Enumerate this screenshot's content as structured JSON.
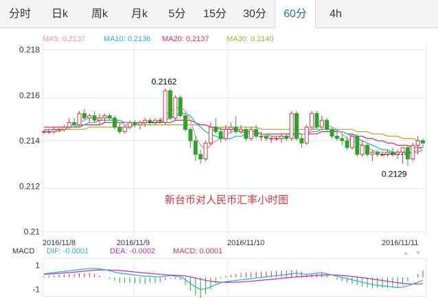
{
  "tabs": [
    {
      "label": "分时"
    },
    {
      "label": "日k"
    },
    {
      "label": "周k"
    },
    {
      "label": "月k"
    },
    {
      "label": "5分"
    },
    {
      "label": "15分"
    },
    {
      "label": "30分"
    },
    {
      "label": "60分",
      "active": true
    },
    {
      "label": "4h"
    }
  ],
  "legend": [
    {
      "label": "MA5: 0.2137",
      "color": "#f08cb4"
    },
    {
      "label": "MA10: 0.2136",
      "color": "#2cb5c8"
    },
    {
      "label": "MA20: 0.2137",
      "color": "#d6306f"
    },
    {
      "label": "MA30: 0.2140",
      "color": "#9db53a"
    }
  ],
  "macd_legend": {
    "title": "MACD",
    "dif": {
      "label": "DIF: -0.0001",
      "color": "#2cb5c8"
    },
    "dea": {
      "label": "DEA: -0.0002",
      "color": "#c02ec8"
    },
    "macd": {
      "label": "MACD: 0.0001",
      "color": "#d6306f"
    }
  },
  "chart_data": {
    "type": "candlestick",
    "title": "新台币对人民币汇率小时图",
    "ylim": [
      0.21,
      0.218
    ],
    "y_ticks": [
      "0.218",
      "0.216",
      "0.214",
      "0.212",
      "0.21"
    ],
    "date_labels": [
      "2016/11/8",
      "2016/11/9",
      "2016/11/10",
      "2016/11/11"
    ],
    "annotations": [
      {
        "label": "0.2162"
      },
      {
        "label": "0.2129"
      }
    ],
    "up_color": "#d8343c",
    "down_color": "#2aa52a",
    "candles": [
      [
        0.2144,
        0.2145,
        0.2143,
        0.2144
      ],
      [
        0.2144,
        0.2145,
        0.2143,
        0.2144
      ],
      [
        0.2144,
        0.2146,
        0.2143,
        0.2145
      ],
      [
        0.2145,
        0.2146,
        0.2144,
        0.2145
      ],
      [
        0.2145,
        0.2147,
        0.2144,
        0.2146
      ],
      [
        0.2146,
        0.215,
        0.2145,
        0.2148
      ],
      [
        0.2148,
        0.215,
        0.2146,
        0.2147
      ],
      [
        0.2147,
        0.2153,
        0.2146,
        0.2152
      ],
      [
        0.2152,
        0.2154,
        0.2149,
        0.215
      ],
      [
        0.215,
        0.2152,
        0.2148,
        0.2151
      ],
      [
        0.2151,
        0.2153,
        0.2148,
        0.2149
      ],
      [
        0.2149,
        0.2152,
        0.2147,
        0.215
      ],
      [
        0.215,
        0.2152,
        0.2148,
        0.2151
      ],
      [
        0.2151,
        0.2152,
        0.2149,
        0.215
      ],
      [
        0.215,
        0.2151,
        0.2145,
        0.2146
      ],
      [
        0.2146,
        0.2148,
        0.2143,
        0.2144
      ],
      [
        0.2144,
        0.2147,
        0.2143,
        0.2146
      ],
      [
        0.2146,
        0.2149,
        0.2145,
        0.2148
      ],
      [
        0.2148,
        0.2149,
        0.2146,
        0.2147
      ],
      [
        0.2147,
        0.2149,
        0.2145,
        0.2148
      ],
      [
        0.2148,
        0.215,
        0.2146,
        0.2149
      ],
      [
        0.2149,
        0.215,
        0.2147,
        0.2148
      ],
      [
        0.2148,
        0.215,
        0.2147,
        0.2149
      ],
      [
        0.2149,
        0.215,
        0.2148,
        0.2149
      ],
      [
        0.2148,
        0.2163,
        0.2147,
        0.2162
      ],
      [
        0.2162,
        0.2163,
        0.2149,
        0.215
      ],
      [
        0.215,
        0.216,
        0.2149,
        0.2159
      ],
      [
        0.2159,
        0.216,
        0.215,
        0.2151
      ],
      [
        0.2151,
        0.2152,
        0.2144,
        0.2145
      ],
      [
        0.2145,
        0.2146,
        0.2137,
        0.214
      ],
      [
        0.214,
        0.2142,
        0.2131,
        0.2134
      ],
      [
        0.2134,
        0.2136,
        0.213,
        0.2132
      ],
      [
        0.2132,
        0.214,
        0.2131,
        0.2139
      ],
      [
        0.2139,
        0.2148,
        0.2138,
        0.2146
      ],
      [
        0.2146,
        0.215,
        0.2143,
        0.2144
      ],
      [
        0.2144,
        0.2146,
        0.2139,
        0.2141
      ],
      [
        0.2141,
        0.2147,
        0.214,
        0.2145
      ],
      [
        0.2145,
        0.2148,
        0.2143,
        0.2146
      ],
      [
        0.2146,
        0.2151,
        0.2143,
        0.2144
      ],
      [
        0.2144,
        0.2147,
        0.2143,
        0.2145
      ],
      [
        0.2145,
        0.2146,
        0.214,
        0.2141
      ],
      [
        0.2141,
        0.2146,
        0.214,
        0.2145
      ],
      [
        0.2145,
        0.2147,
        0.2141,
        0.2142
      ],
      [
        0.2142,
        0.2144,
        0.214,
        0.2142
      ],
      [
        0.2142,
        0.2143,
        0.214,
        0.2141
      ],
      [
        0.2141,
        0.2142,
        0.2139,
        0.2141
      ],
      [
        0.2141,
        0.2142,
        0.214,
        0.2141
      ],
      [
        0.2141,
        0.2143,
        0.2139,
        0.2142
      ],
      [
        0.2142,
        0.2143,
        0.214,
        0.2141
      ],
      [
        0.2141,
        0.2153,
        0.214,
        0.2152
      ],
      [
        0.2152,
        0.2153,
        0.214,
        0.2141
      ],
      [
        0.2141,
        0.2143,
        0.2137,
        0.2139
      ],
      [
        0.2139,
        0.2147,
        0.2138,
        0.2146
      ],
      [
        0.2146,
        0.2153,
        0.2145,
        0.2152
      ],
      [
        0.2152,
        0.2153,
        0.2145,
        0.2146
      ],
      [
        0.2146,
        0.2151,
        0.2145,
        0.2149
      ],
      [
        0.2149,
        0.215,
        0.2144,
        0.2145
      ],
      [
        0.2145,
        0.2146,
        0.2141,
        0.2142
      ],
      [
        0.2142,
        0.2145,
        0.214,
        0.2141
      ],
      [
        0.2141,
        0.2143,
        0.2138,
        0.214
      ],
      [
        0.214,
        0.2142,
        0.2136,
        0.2137
      ],
      [
        0.2137,
        0.2143,
        0.2136,
        0.2142
      ],
      [
        0.2142,
        0.2143,
        0.2133,
        0.2134
      ],
      [
        0.2134,
        0.214,
        0.2133,
        0.2138
      ],
      [
        0.2138,
        0.2139,
        0.2133,
        0.2134
      ],
      [
        0.2134,
        0.2136,
        0.2131,
        0.2135
      ],
      [
        0.2135,
        0.2136,
        0.2133,
        0.2134
      ],
      [
        0.2134,
        0.2135,
        0.2133,
        0.2134
      ],
      [
        0.2134,
        0.2136,
        0.2133,
        0.2135
      ],
      [
        0.2135,
        0.2137,
        0.2133,
        0.2134
      ],
      [
        0.2134,
        0.2136,
        0.2132,
        0.2135
      ],
      [
        0.2135,
        0.2137,
        0.213,
        0.2137
      ],
      [
        0.2137,
        0.2138,
        0.2129,
        0.2132
      ],
      [
        0.2132,
        0.2139,
        0.2131,
        0.2138
      ],
      [
        0.2138,
        0.2142,
        0.2134,
        0.214
      ],
      [
        0.214,
        0.2141,
        0.2137,
        0.2139
      ]
    ],
    "ma": {
      "MA5": [
        0.2145,
        0.2144,
        0.2144,
        0.2145,
        0.2145,
        0.2146,
        0.2147,
        0.2148,
        0.2149,
        0.215,
        0.215,
        0.215,
        0.215,
        0.215,
        0.2149,
        0.2148,
        0.2147,
        0.2147,
        0.2147,
        0.2147,
        0.2148,
        0.2148,
        0.2148,
        0.2149,
        0.2151,
        0.2153,
        0.2154,
        0.2155,
        0.2153,
        0.2149,
        0.2142,
        0.2138,
        0.2136,
        0.2138,
        0.214,
        0.2141,
        0.2142,
        0.2144,
        0.2144,
        0.2144,
        0.2143,
        0.2143,
        0.2143,
        0.2143,
        0.2142,
        0.2142,
        0.2141,
        0.2141,
        0.2141,
        0.2143,
        0.2144,
        0.2143,
        0.2143,
        0.2145,
        0.2146,
        0.2147,
        0.2147,
        0.2146,
        0.2145,
        0.2143,
        0.2141,
        0.214,
        0.2139,
        0.2138,
        0.2137,
        0.2136,
        0.2135,
        0.2135,
        0.2135,
        0.2134,
        0.2135,
        0.2135,
        0.2134,
        0.2135,
        0.2136,
        0.2137
      ],
      "MA10": [
        0.2145,
        0.2145,
        0.2145,
        0.2145,
        0.2145,
        0.2146,
        0.2146,
        0.2147,
        0.2147,
        0.2148,
        0.2148,
        0.2149,
        0.2149,
        0.2149,
        0.2149,
        0.2149,
        0.2148,
        0.2148,
        0.2148,
        0.2148,
        0.2148,
        0.2148,
        0.2148,
        0.2148,
        0.2149,
        0.215,
        0.2151,
        0.2152,
        0.2152,
        0.2151,
        0.2148,
        0.2146,
        0.2144,
        0.2143,
        0.2142,
        0.2141,
        0.2141,
        0.2141,
        0.2142,
        0.2142,
        0.2143,
        0.2143,
        0.2143,
        0.2143,
        0.2143,
        0.2142,
        0.2142,
        0.2142,
        0.2142,
        0.2142,
        0.2143,
        0.2143,
        0.2143,
        0.2144,
        0.2144,
        0.2145,
        0.2145,
        0.2145,
        0.2144,
        0.2144,
        0.2143,
        0.2142,
        0.2141,
        0.214,
        0.2139,
        0.2138,
        0.2137,
        0.2136,
        0.2136,
        0.2135,
        0.2135,
        0.2135,
        0.2135,
        0.2135,
        0.2135,
        0.2136
      ],
      "MA20": [
        0.2146,
        0.2146,
        0.2146,
        0.2146,
        0.2146,
        0.2146,
        0.2146,
        0.2146,
        0.2147,
        0.2147,
        0.2147,
        0.2147,
        0.2148,
        0.2148,
        0.2148,
        0.2148,
        0.2148,
        0.2148,
        0.2148,
        0.2148,
        0.2148,
        0.2148,
        0.2148,
        0.2148,
        0.2148,
        0.2148,
        0.2149,
        0.2149,
        0.2149,
        0.2149,
        0.2148,
        0.2147,
        0.2147,
        0.2146,
        0.2146,
        0.2145,
        0.2145,
        0.2145,
        0.2145,
        0.2145,
        0.2144,
        0.2144,
        0.2144,
        0.2143,
        0.2143,
        0.2143,
        0.2143,
        0.2143,
        0.2143,
        0.2143,
        0.2143,
        0.2143,
        0.2143,
        0.2143,
        0.2143,
        0.2144,
        0.2144,
        0.2144,
        0.2144,
        0.2144,
        0.2143,
        0.2143,
        0.2142,
        0.2142,
        0.2141,
        0.2141,
        0.214,
        0.214,
        0.2139,
        0.2139,
        0.2138,
        0.2138,
        0.2138,
        0.2137,
        0.2137,
        0.2137
      ],
      "MA30": [
        0.2144,
        0.2144,
        0.2144,
        0.2144,
        0.2145,
        0.2145,
        0.2145,
        0.2145,
        0.2145,
        0.2146,
        0.2146,
        0.2146,
        0.2146,
        0.2146,
        0.2146,
        0.2146,
        0.2146,
        0.2146,
        0.2147,
        0.2147,
        0.2147,
        0.2147,
        0.2147,
        0.2147,
        0.2147,
        0.2147,
        0.2147,
        0.2147,
        0.2147,
        0.2147,
        0.2147,
        0.2147,
        0.2147,
        0.2146,
        0.2146,
        0.2146,
        0.2146,
        0.2146,
        0.2146,
        0.2146,
        0.2146,
        0.2146,
        0.2146,
        0.2145,
        0.2145,
        0.2145,
        0.2145,
        0.2145,
        0.2145,
        0.2145,
        0.2145,
        0.2145,
        0.2145,
        0.2145,
        0.2145,
        0.2145,
        0.2145,
        0.2145,
        0.2145,
        0.2145,
        0.2145,
        0.2145,
        0.2144,
        0.2144,
        0.2144,
        0.2143,
        0.2143,
        0.2143,
        0.2142,
        0.2142,
        0.2142,
        0.2141,
        0.2141,
        0.2141,
        0.214,
        0.214
      ]
    },
    "macd": {
      "ylim": [
        -1.6,
        1.6
      ],
      "y_ticks": [
        "1",
        "-1"
      ],
      "dif": [
        0.3,
        0.35,
        0.4,
        0.45,
        0.5,
        0.55,
        0.6,
        0.65,
        0.7,
        0.75,
        0.75,
        0.7,
        0.65,
        0.55,
        0.45,
        0.35,
        0.3,
        0.25,
        0.2,
        0.15,
        0.1,
        0.1,
        0.05,
        0.05,
        0.1,
        0.15,
        0.1,
        0.05,
        -0.2,
        -0.5,
        -0.8,
        -1.0,
        -0.95,
        -0.8,
        -0.6,
        -0.45,
        -0.35,
        -0.3,
        -0.25,
        -0.2,
        -0.15,
        -0.1,
        -0.05,
        0.0,
        0.05,
        0.1,
        0.15,
        0.2,
        0.25,
        0.3,
        0.35,
        0.3,
        0.25,
        0.3,
        0.35,
        0.4,
        0.3,
        0.2,
        0.1,
        0.0,
        -0.1,
        -0.2,
        -0.3,
        -0.4,
        -0.5,
        -0.6,
        -0.65,
        -0.7,
        -0.75,
        -0.8,
        -0.85,
        -0.8,
        -0.7,
        -0.55,
        -0.4,
        -0.25
      ],
      "dea": [
        0.25,
        0.28,
        0.31,
        0.34,
        0.37,
        0.4,
        0.44,
        0.48,
        0.52,
        0.56,
        0.6,
        0.62,
        0.63,
        0.62,
        0.6,
        0.57,
        0.53,
        0.49,
        0.45,
        0.41,
        0.37,
        0.33,
        0.29,
        0.25,
        0.22,
        0.2,
        0.18,
        0.16,
        0.12,
        0.05,
        -0.05,
        -0.15,
        -0.25,
        -0.32,
        -0.37,
        -0.4,
        -0.41,
        -0.41,
        -0.4,
        -0.38,
        -0.35,
        -0.32,
        -0.28,
        -0.24,
        -0.2,
        -0.16,
        -0.12,
        -0.08,
        -0.04,
        0.0,
        0.04,
        0.07,
        0.1,
        0.13,
        0.16,
        0.19,
        0.21,
        0.21,
        0.19,
        0.16,
        0.12,
        0.08,
        0.03,
        -0.02,
        -0.08,
        -0.14,
        -0.2,
        -0.26,
        -0.32,
        -0.38,
        -0.44,
        -0.49,
        -0.53,
        -0.55,
        -0.55,
        -0.54
      ],
      "hist": [
        0.1,
        0.14,
        0.18,
        0.22,
        0.26,
        0.3,
        0.32,
        0.34,
        0.36,
        0.38,
        0.3,
        0.16,
        0.04,
        -0.14,
        -0.3,
        -0.44,
        -0.46,
        -0.48,
        -0.5,
        -0.52,
        -0.54,
        -0.46,
        -0.48,
        -0.4,
        -0.24,
        -0.1,
        -0.16,
        -0.22,
        -0.64,
        -1.1,
        -1.5,
        -1.7,
        -1.4,
        -0.96,
        -0.46,
        -0.1,
        0.12,
        0.22,
        0.3,
        0.36,
        0.4,
        0.44,
        0.46,
        0.48,
        0.5,
        0.52,
        0.54,
        0.56,
        0.58,
        0.6,
        0.62,
        0.46,
        0.3,
        0.34,
        0.38,
        0.42,
        0.18,
        -0.02,
        -0.18,
        -0.32,
        -0.44,
        -0.56,
        -0.66,
        -0.76,
        -0.84,
        -0.92,
        -0.9,
        -0.88,
        -0.86,
        -0.84,
        -0.82,
        -0.62,
        -0.34,
        0.0,
        0.3,
        0.58
      ]
    }
  }
}
